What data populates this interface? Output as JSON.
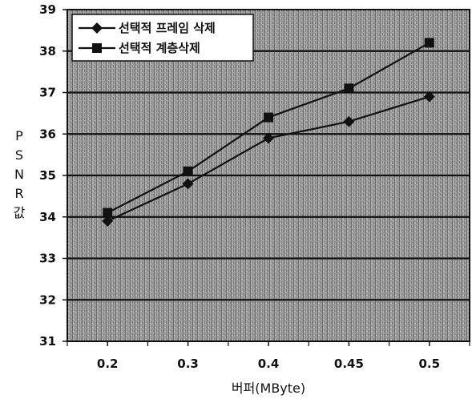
{
  "chart_data": {
    "type": "line",
    "categories": [
      "0.2",
      "0.3",
      "0.4",
      "0.45",
      "0.5"
    ],
    "series": [
      {
        "name": "선택적 프레임 삭제",
        "marker": "diamond",
        "values": [
          33.9,
          34.8,
          35.9,
          36.3,
          36.9
        ]
      },
      {
        "name": "선택적 계층삭제",
        "marker": "square",
        "values": [
          34.1,
          35.1,
          36.4,
          37.1,
          38.2
        ]
      }
    ],
    "xlabel": "버퍼(MByte)",
    "ylabel": "PSNR값",
    "ylim": [
      31,
      39
    ],
    "yticks": [
      31,
      32,
      33,
      34,
      35,
      36,
      37,
      38,
      39
    ],
    "grid": "horizontal",
    "legend_position": "top-left",
    "colors": {
      "line": "#111111",
      "plot_background": "#9a9a9a",
      "gridline": "#111111"
    }
  }
}
